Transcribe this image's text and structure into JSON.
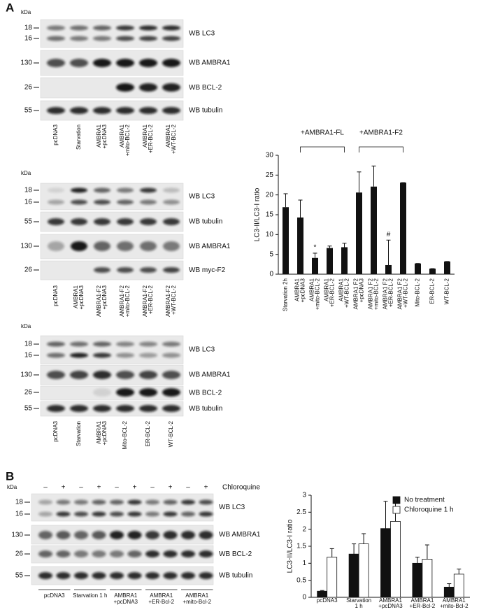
{
  "panel_labels": [
    "A",
    "B"
  ],
  "blots": [
    {
      "kda": "kDa",
      "lanes": [
        [
          "pcDNA3"
        ],
        [
          "Starvation"
        ],
        [
          "AMBRA1",
          "+pcDNA3"
        ],
        [
          "AMBRA1",
          "+mito-BCL-2"
        ],
        [
          "AMBRA1",
          "+ER-BCL-2"
        ],
        [
          "AMBRA1",
          "+WT-BCL-2"
        ]
      ],
      "rows": [
        {
          "markers": [
            "18",
            "16"
          ],
          "label": "WB LC3"
        },
        {
          "markers": [
            "130"
          ],
          "label": "WB AMBRA1"
        },
        {
          "markers": [
            "26"
          ],
          "label": "WB BCL-2"
        },
        {
          "markers": [
            "55"
          ],
          "label": "WB tubulin"
        }
      ]
    },
    {
      "kda": "kDa",
      "lanes": [
        [
          "pcDNA3"
        ],
        [
          "AMBRA1",
          "+pcDNA3"
        ],
        [
          "AMBRA1-F2",
          "+pcDNA3"
        ],
        [
          "AMBRA1-F2",
          "+mito-BCL-2"
        ],
        [
          "AMBRA1-F2",
          "+ER-BCL-2"
        ],
        [
          "AMBRA1-F2",
          "+WT-BCL-2"
        ]
      ],
      "rows": [
        {
          "markers": [
            "18",
            "16"
          ],
          "label": "WB LC3"
        },
        {
          "markers": [
            "55"
          ],
          "label": "WB tubulin"
        },
        {
          "markers": [
            "130"
          ],
          "label": "WB AMBRA1"
        },
        {
          "markers": [
            "26"
          ],
          "label": "WB  myc-F2"
        }
      ]
    },
    {
      "kda": "kDa",
      "lanes": [
        [
          "pcDNA3"
        ],
        [
          "Starvation"
        ],
        [
          "AMBRA1",
          "+pcDNA3"
        ],
        [
          "Mito-BCL-2"
        ],
        [
          "ER-BCL-2"
        ],
        [
          "WT-BCL-2"
        ]
      ],
      "rows": [
        {
          "markers": [
            "18",
            "16"
          ],
          "label": "WB LC3"
        },
        {
          "markers": [
            "130"
          ],
          "label": "WB AMBRA1"
        },
        {
          "markers": [
            "26"
          ],
          "label": "WB BCL-2"
        },
        {
          "markers": [
            "55"
          ],
          "label": "WB tubulin"
        }
      ]
    },
    {
      "kda": "kDa",
      "treatment": [
        "–",
        "+",
        "–",
        "+",
        "–",
        "+",
        "–",
        "+",
        "–",
        "+"
      ],
      "treatment_label": "Chloroquine",
      "groups": [
        [
          "pcDNA3"
        ],
        [
          "Starvation 1 h"
        ],
        [
          "AMBRA1",
          "+pcDNA3"
        ],
        [
          "AMBRA1",
          "+ER-Bcl-2"
        ],
        [
          "AMBRA1",
          "+mito-Bcl-2"
        ]
      ],
      "rows": [
        {
          "markers": [
            "18",
            "16"
          ],
          "label": "WB LC3"
        },
        {
          "markers": [
            "130"
          ],
          "label": "WB AMBRA1"
        },
        {
          "markers": [
            "26"
          ],
          "label": "WB BCL-2"
        },
        {
          "markers": [
            "55"
          ],
          "label": "WB tubulin"
        }
      ]
    }
  ],
  "chart_data": [
    {
      "type": "bar",
      "ylabel": "LC3-II/LC3-I ratio",
      "categories": [
        [
          "Starvation 2h"
        ],
        [
          "AMBRA1",
          "+pcDNA3"
        ],
        [
          "AMBRA1",
          "+mito-BCL-2"
        ],
        [
          "AMBRA1",
          "+ER-BCL-2"
        ],
        [
          "AMBRA1",
          "+WT-BCL-2"
        ],
        [
          "AMBRA1 F2",
          "+pcDNA3"
        ],
        [
          "AMBRA1 F2",
          "+mito-BCL-2"
        ],
        [
          "AMBRA1 F2",
          "+ER-BCL-2"
        ],
        [
          "AMBRA1 F2",
          "+WT-BCL-2"
        ],
        [
          "Mito-BCL-2"
        ],
        [
          "ER-BCL-2"
        ],
        [
          "WT-BCL-2"
        ]
      ],
      "values": [
        16.9,
        14.3,
        4.1,
        6.6,
        6.8,
        20.6,
        22.1,
        2.3,
        23.1,
        2.7,
        1.4,
        3.2
      ],
      "errors": [
        3.4,
        4.4,
        1.2,
        0.5,
        1.0,
        5.2,
        5.2,
        6.3,
        0,
        0,
        0,
        0
      ],
      "color": "#111111",
      "significance": [
        null,
        null,
        "*",
        null,
        null,
        null,
        null,
        "#",
        null,
        null,
        null,
        null
      ],
      "brackets": [
        {
          "label": "+AMBRA1-FL",
          "span": [
            1,
            4
          ]
        },
        {
          "label": "+AMBRA1-F2",
          "span": [
            5,
            8
          ]
        }
      ],
      "ylim": [
        0,
        30
      ],
      "yticks": [
        0,
        5,
        10,
        15,
        20,
        25,
        30
      ]
    },
    {
      "type": "grouped-bar",
      "ylabel": "LC3-II/LC3-I ratio",
      "categories": [
        [
          "pcDNA3"
        ],
        [
          "Starvation",
          "1 h"
        ],
        [
          "AMBRA1",
          "+pcDNA3"
        ],
        [
          "AMBRA1",
          "+ER-Bcl-2"
        ],
        [
          "AMBRA1",
          "+mito-Bcl-2"
        ]
      ],
      "series": [
        {
          "name": "No treatment",
          "color": "#111111",
          "values": [
            0.18,
            1.27,
            2.02,
            1.0,
            0.3
          ],
          "errors": [
            0.02,
            0.3,
            0.8,
            0.18,
            0.1
          ]
        },
        {
          "name": "Chloroquine 1 h",
          "color": "#ffffff",
          "values": [
            1.18,
            1.57,
            2.23,
            1.12,
            0.68
          ],
          "errors": [
            0.25,
            0.3,
            0.6,
            0.42,
            0.15
          ]
        }
      ],
      "legend": "top-right",
      "ylim": [
        0,
        3
      ],
      "yticks": [
        0,
        0.5,
        1,
        1.5,
        2,
        2.5,
        3
      ]
    }
  ]
}
